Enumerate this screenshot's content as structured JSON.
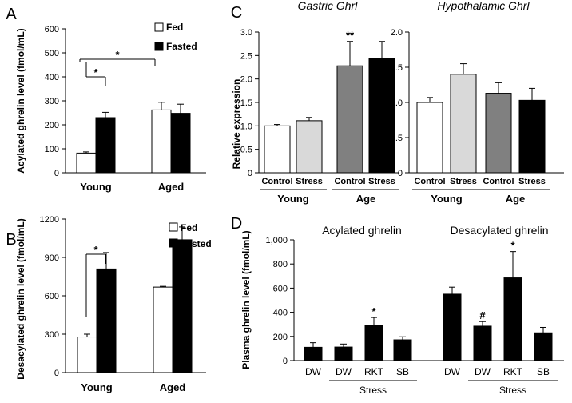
{
  "figure": {
    "panels": [
      {
        "id": "A",
        "type": "bar",
        "ylabel": "Acylated ghrelin level (fmol/mL)",
        "ylim": [
          0,
          600
        ],
        "yticks": [
          0,
          100,
          200,
          300,
          400,
          500,
          600
        ],
        "groups": [
          "Young",
          "Aged"
        ],
        "legend": [
          "Fed",
          "Fasted"
        ],
        "series": [
          {
            "name": "Fed",
            "color": "#ffffff",
            "values": [
              82,
              262
            ],
            "errors": [
              5,
              32
            ]
          },
          {
            "name": "Fasted",
            "color": "#000000",
            "values": [
              230,
              248
            ],
            "errors": [
              22,
              38
            ]
          }
        ],
        "annotations": [
          {
            "text": "*",
            "between": "Young Fed vs Young Fasted"
          },
          {
            "text": "*",
            "between": "Young Fed vs Aged Fed"
          }
        ]
      },
      {
        "id": "B",
        "type": "bar",
        "ylabel": "Desacylated ghrelin level (fmol/mL)",
        "ylim": [
          0,
          1200
        ],
        "yticks": [
          0,
          300,
          600,
          900,
          1200
        ],
        "groups": [
          "Young",
          "Aged"
        ],
        "legend": [
          "Fed",
          "Fasted"
        ],
        "series": [
          {
            "name": "Fed",
            "color": "#ffffff",
            "values": [
              278,
              668
            ],
            "errors": [
              22,
              6
            ]
          },
          {
            "name": "Fasted",
            "color": "#000000",
            "values": [
              810,
              1038
            ],
            "errors": [
              128,
              100
            ]
          }
        ],
        "annotations": [
          {
            "text": "*",
            "between": "Young Fed vs Young Fasted"
          }
        ]
      },
      {
        "id": "C",
        "type": "bar",
        "ylabel": "Relative expression",
        "subplots": [
          {
            "title": "Gastric Ghrl",
            "ylim": [
              0,
              3.0
            ],
            "yticks": [
              "0",
              "0.5",
              "1.0",
              "1.5",
              "2.0",
              "2.5",
              "3.0"
            ],
            "categories": [
              "Control",
              "Stress",
              "Control",
              "Stress"
            ],
            "values": [
              1.0,
              1.11,
              2.28,
              2.43
            ],
            "errors": [
              0.03,
              0.07,
              0.52,
              0.37
            ],
            "colors": [
              "#ffffff",
              "#d9d9d9",
              "#808080",
              "#000000"
            ],
            "annotations": [
              {
                "text": "**",
                "bar": 2
              }
            ]
          },
          {
            "title": "Hypothalamic Ghrl",
            "ylim": [
              0,
              2.0
            ],
            "yticks": [
              "0",
              "0.5",
              "1.0",
              "1.5",
              "2.0"
            ],
            "categories": [
              "Control",
              "Stress",
              "Control",
              "Stress"
            ],
            "values": [
              1.0,
              1.4,
              1.13,
              1.03
            ],
            "errors": [
              0.07,
              0.15,
              0.15,
              0.17
            ],
            "colors": [
              "#ffffff",
              "#d9d9d9",
              "#808080",
              "#000000"
            ],
            "annotations": []
          }
        ],
        "groups": [
          "Young",
          "Age"
        ]
      },
      {
        "id": "D",
        "type": "bar",
        "ylabel": "Plasma ghrelin level (fmol/mL)",
        "ylim": [
          0,
          1000
        ],
        "yticks": [
          "0",
          "200",
          "400",
          "600",
          "800",
          "1,000"
        ],
        "sections": [
          {
            "title": "Acylated ghrelin",
            "categories": [
              "DW",
              "DW",
              "RKT",
              "SB"
            ],
            "values": [
              110,
              112,
              292,
              172
            ],
            "errors": [
              38,
              25,
              65,
              25
            ],
            "marks": [
              "",
              "",
              "*",
              ""
            ]
          },
          {
            "title": "Desacylated ghrelin",
            "categories": [
              "DW",
              "DW",
              "RKT",
              "SB"
            ],
            "values": [
              550,
              285,
              685,
              230
            ],
            "errors": [
              58,
              38,
              218,
              45
            ],
            "marks": [
              "",
              "#",
              "*",
              ""
            ]
          }
        ],
        "stress_label": "Stress"
      }
    ]
  }
}
